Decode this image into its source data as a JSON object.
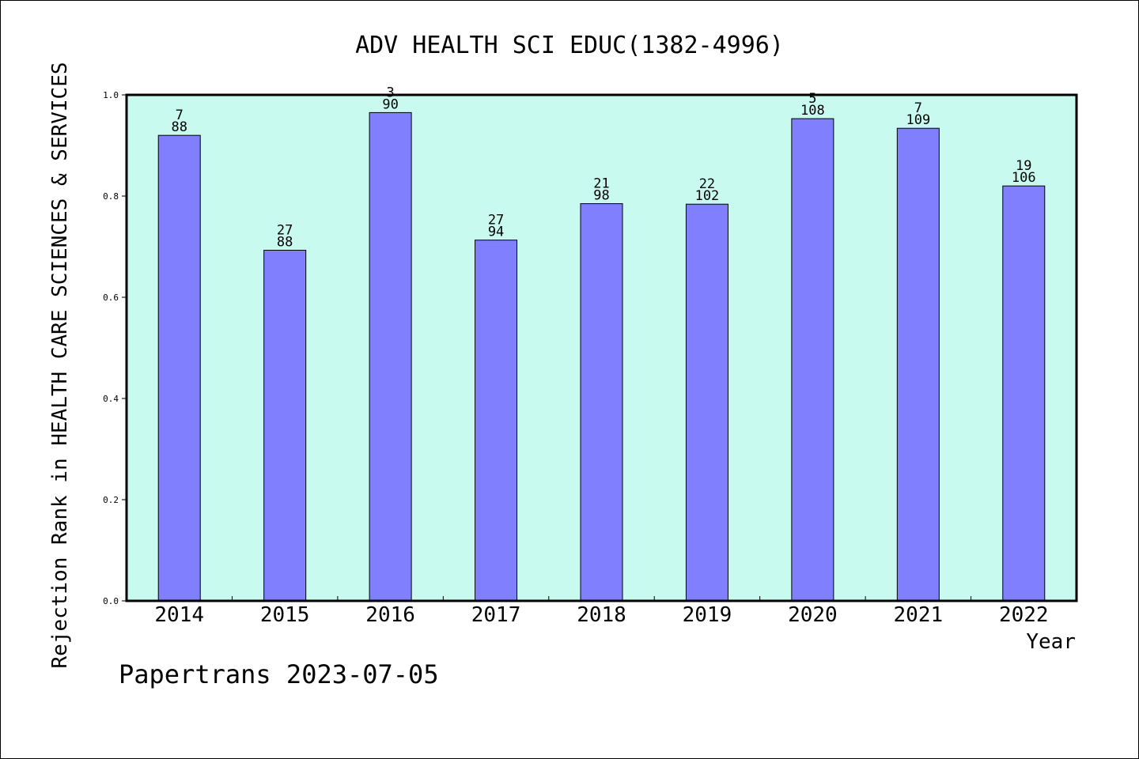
{
  "chart_data": {
    "type": "bar",
    "title": "ADV HEALTH SCI EDUC(1382-4996)",
    "xlabel": "Year",
    "ylabel": "Rejection Rank in HEALTH CARE SCIENCES & SERVICES",
    "categories": [
      "2014",
      "2015",
      "2016",
      "2017",
      "2018",
      "2019",
      "2020",
      "2021",
      "2022"
    ],
    "values": [
      0.92,
      0.693,
      0.965,
      0.713,
      0.785,
      0.784,
      0.953,
      0.934,
      0.82
    ],
    "labels_top": [
      "7",
      "27",
      "3",
      "27",
      "21",
      "22",
      "5",
      "7",
      "19"
    ],
    "labels_bottom": [
      "88",
      "88",
      "90",
      "94",
      "98",
      "102",
      "108",
      "109",
      "106"
    ],
    "ylim": [
      0,
      1.0
    ],
    "yticks": [
      "0.0",
      "0.2",
      "0.4",
      "0.6",
      "0.8",
      "1.0"
    ],
    "grid": false,
    "colors": {
      "plot_bg": "#c8faef",
      "bar_fill": "#8080ff",
      "bar_stroke": "#000000"
    }
  },
  "footer": "Papertrans 2023-07-05"
}
